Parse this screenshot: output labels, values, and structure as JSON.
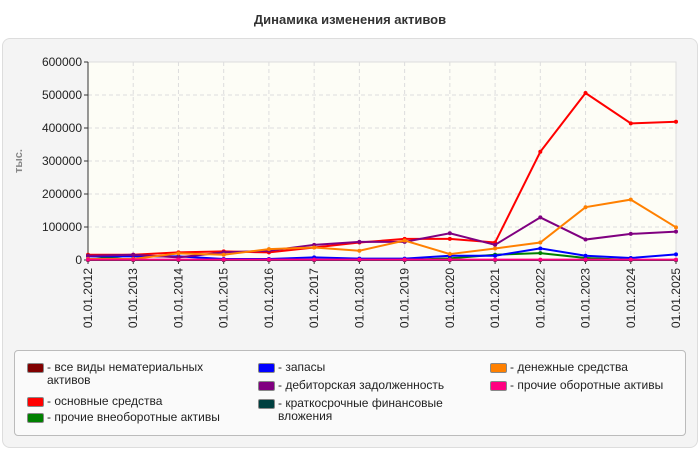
{
  "chart_data": {
    "type": "line",
    "title": "Динамика изменения активов",
    "ylabel": "тыс.",
    "xlabel": "",
    "ylim": [
      0,
      600000
    ],
    "yticks": [
      "0",
      "100000",
      "200000",
      "300000",
      "400000",
      "500000",
      "600000"
    ],
    "categories": [
      "01.01.2012",
      "01.01.2013",
      "01.01.2014",
      "01.01.2015",
      "01.01.2016",
      "01.01.2017",
      "01.01.2018",
      "01.01.2019",
      "01.01.2020",
      "01.01.2021",
      "01.01.2022",
      "01.01.2023",
      "01.01.2024",
      "01.01.2025"
    ],
    "grid": true,
    "legend": "bottom",
    "series": [
      {
        "name": "- все виды нематериальных активов",
        "color": "#800000",
        "values": [
          0,
          0,
          0,
          0,
          0,
          0,
          0,
          0,
          0,
          0,
          0,
          0,
          0,
          0
        ]
      },
      {
        "name": "- основные средства",
        "color": "#ff0000",
        "values": [
          16000,
          16000,
          23000,
          26000,
          23000,
          38000,
          53000,
          64000,
          64000,
          53000,
          328000,
          506000,
          414000,
          419000
        ]
      },
      {
        "name": "- прочие внеоборотные активы",
        "color": "#008000",
        "values": [
          13000,
          0,
          0,
          0,
          0,
          0,
          0,
          0,
          5000,
          16000,
          21000,
          6000,
          0,
          0
        ]
      },
      {
        "name": "- запасы",
        "color": "#0000ff",
        "values": [
          11000,
          11000,
          11000,
          3000,
          3000,
          8000,
          4000,
          4000,
          13000,
          13000,
          35000,
          13000,
          6000,
          17000
        ]
      },
      {
        "name": "- дебиторская задолженность",
        "color": "#800080",
        "values": [
          13000,
          16000,
          8000,
          23000,
          28000,
          46000,
          55000,
          55000,
          81000,
          46000,
          129000,
          62000,
          79000,
          86000
        ]
      },
      {
        "name": "- краткосрочные финансовые вложения",
        "color": "#004040",
        "values": [
          0,
          0,
          0,
          0,
          0,
          0,
          0,
          0,
          0,
          0,
          0,
          0,
          0,
          0
        ]
      },
      {
        "name": "- денежные средства",
        "color": "#ff8000",
        "values": [
          3000,
          3000,
          20000,
          16000,
          33000,
          38000,
          28000,
          59000,
          18000,
          35000,
          53000,
          160000,
          183000,
          99000
        ]
      },
      {
        "name": "- прочие оборотные активы",
        "color": "#ff0080",
        "values": [
          1000,
          1000,
          1000,
          1000,
          1000,
          1000,
          1000,
          1000,
          1000,
          1000,
          1000,
          1000,
          1000,
          1000
        ]
      }
    ]
  }
}
